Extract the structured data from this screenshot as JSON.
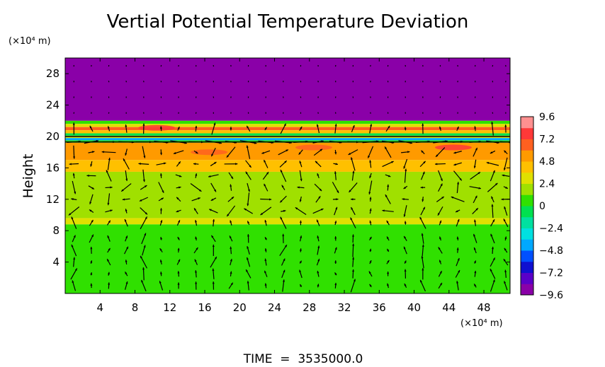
{
  "chart_data": {
    "type": "heatmap",
    "title": "Vertial Potential Temperature Deviation",
    "ylabel": "Height",
    "y_unit": "(×10⁴ m)",
    "x_unit": "(×10⁴ m)",
    "footer": "TIME  =  3535000.0",
    "xlim": [
      0,
      51
    ],
    "ylim": [
      0,
      30
    ],
    "x_ticks": [
      4,
      8,
      12,
      16,
      20,
      24,
      28,
      32,
      36,
      40,
      44,
      48
    ],
    "x_tick_labels": [
      "4",
      "8",
      "12",
      "16",
      "20",
      "24",
      "28",
      "32",
      "36",
      "40",
      "44",
      "48"
    ],
    "y_ticks": [
      4,
      8,
      12,
      16,
      20,
      24,
      28
    ],
    "y_tick_labels": [
      "4",
      "8",
      "12",
      "16",
      "20",
      "24",
      "28"
    ],
    "colorbar": {
      "range": [
        -9.6,
        9.6
      ],
      "tick_values": [
        9.6,
        7.2,
        4.8,
        2.4,
        0,
        -2.4,
        -4.8,
        -7.2,
        -9.6
      ],
      "tick_labels": [
        "9.6",
        "7.2",
        "4.8",
        "2.4",
        "0",
        "−2.4",
        "−4.8",
        "−7.2",
        "−9.6"
      ],
      "colors": [
        "#8a00a8",
        "#5a00c8",
        "#1010d0",
        "#0050ff",
        "#00a8ff",
        "#00e0e0",
        "#00e0a0",
        "#00e050",
        "#30e000",
        "#a0e000",
        "#e0e000",
        "#ffc000",
        "#ff9a00",
        "#ff6020",
        "#ff3838",
        "#ff9090"
      ]
    },
    "field_layers": [
      {
        "y_top": 30,
        "y_bottom": 22.0,
        "value": -9.6
      },
      {
        "y_top": 22.0,
        "y_bottom": 21.6,
        "value": 0.5
      },
      {
        "y_top": 21.6,
        "y_bottom": 21.2,
        "value": 2.4
      },
      {
        "y_top": 21.2,
        "y_bottom": 20.8,
        "value": 6.0
      },
      {
        "y_top": 20.8,
        "y_bottom": 20.4,
        "value": 4.0
      },
      {
        "y_top": 20.4,
        "y_bottom": 20.1,
        "value": -1.2
      },
      {
        "y_top": 20.1,
        "y_bottom": 19.8,
        "value": 3.0
      },
      {
        "y_top": 19.8,
        "y_bottom": 19.5,
        "value": -4.0
      },
      {
        "y_top": 19.5,
        "y_bottom": 19.2,
        "value": 1.0
      },
      {
        "y_top": 19.2,
        "y_bottom": 17.0,
        "value": 5.6
      },
      {
        "y_top": 17.0,
        "y_bottom": 15.5,
        "value": 3.8
      },
      {
        "y_top": 15.5,
        "y_bottom": 9.6,
        "value": 2.2
      },
      {
        "y_top": 9.6,
        "y_bottom": 8.8,
        "value": 3.2
      },
      {
        "y_top": 8.8,
        "y_bottom": 0,
        "value": 0.6
      }
    ],
    "hot_spots": [
      {
        "x": 10.5,
        "y": 21.1,
        "value": 8.0
      },
      {
        "x": 44.5,
        "y": 18.6,
        "value": 8.2
      },
      {
        "x": 28.5,
        "y": 18.6,
        "value": 7.0
      },
      {
        "x": 16.5,
        "y": 18.0,
        "value": 6.6
      }
    ],
    "contour_lines_y": [
      19.3,
      20.0
    ],
    "vector_field": {
      "description": "wind vectors (u, w) over the domain",
      "columns_x": [
        1,
        3,
        5,
        7,
        9,
        11,
        13,
        15,
        17,
        19,
        21,
        23,
        25,
        27,
        29,
        31,
        33,
        35,
        37,
        39,
        41,
        43,
        45,
        47,
        49,
        50.5
      ],
      "rows_y": [
        1,
        2.5,
        4,
        5.5,
        7,
        9,
        10.5,
        12,
        13.5,
        15,
        16.5,
        18,
        19.3,
        21,
        23,
        25,
        27,
        29
      ]
    }
  }
}
